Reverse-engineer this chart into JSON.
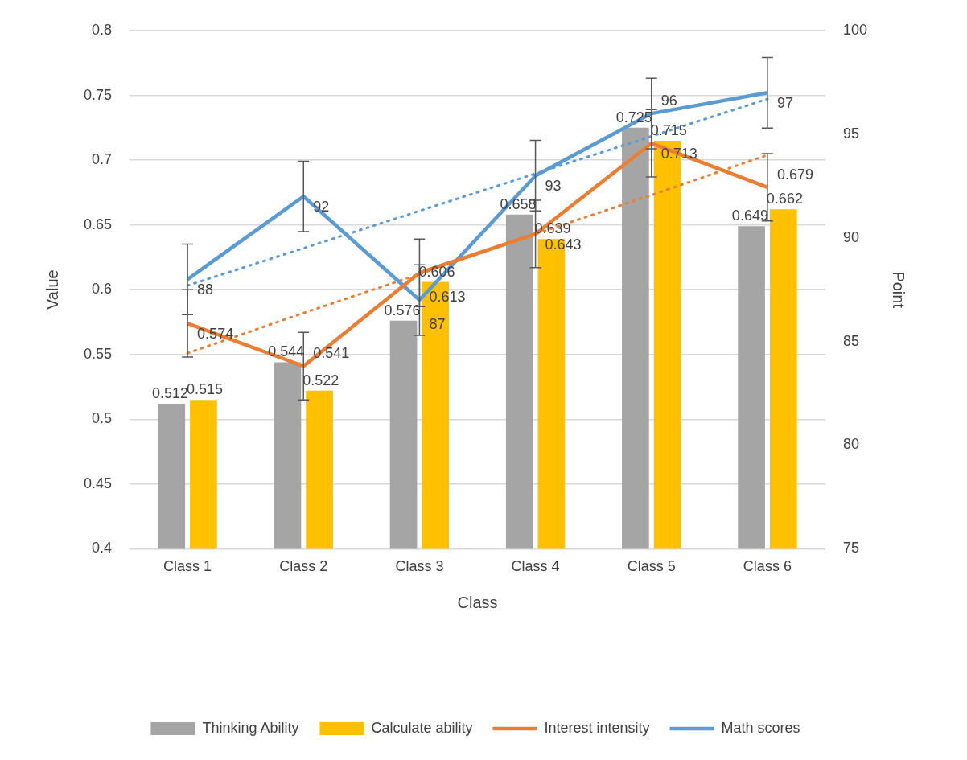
{
  "chart_data": {
    "type": "bar",
    "xlabel": "Class",
    "ylabel": "Value",
    "y2label": "Point",
    "categories": [
      "Class 1",
      "Class 2",
      "Class 3",
      "Class 4",
      "Class 5",
      "Class 6"
    ],
    "series": [
      {
        "name": "Thinking Ability",
        "color": "#a5a5a5",
        "values": [
          0.512,
          0.544,
          0.576,
          0.658,
          0.725,
          0.649
        ],
        "value_labels": [
          "0.512",
          "0.544",
          "0.576",
          "0.658",
          "0.725",
          "0.649"
        ]
      },
      {
        "name": "Calculate ability",
        "color": "#ffc000",
        "values": [
          0.515,
          0.522,
          0.606,
          0.639,
          0.715,
          0.662
        ],
        "value_labels": [
          "0.515",
          "0.522",
          "0.606",
          "0.639",
          "0.715",
          "0.662"
        ]
      },
      {
        "name": "Interest intensity",
        "type": "line",
        "color": "#ed7d31",
        "values": [
          0.574,
          0.541,
          0.613,
          0.643,
          0.713,
          0.679
        ],
        "errors": [
          0.026,
          0.026,
          0.026,
          0.026,
          0.026,
          0.026
        ],
        "value_labels": [
          "0.574",
          "0.541",
          "0.613",
          "0.643",
          "0.713",
          "0.679"
        ]
      },
      {
        "name": "Math scores",
        "type": "line",
        "axis": "y2",
        "color": "#5b9bd5",
        "values": [
          88,
          92,
          87,
          93,
          96,
          97
        ],
        "errors": [
          1.7,
          1.7,
          1.7,
          1.7,
          1.7,
          1.7
        ],
        "value_labels": [
          "88",
          "92",
          "87",
          "93",
          "96",
          "97"
        ]
      },
      {
        "type": "line",
        "color": "#ed7d31",
        "line_style": "dotted",
        "values": [
          0.551,
          0.582,
          0.612,
          0.643,
          0.673,
          0.704
        ]
      },
      {
        "type": "line",
        "axis": "y2",
        "color": "#5b9bd5",
        "line_style": "dotted",
        "values": [
          87.7,
          89.5,
          91.3,
          93.1,
          94.9,
          96.7
        ]
      }
    ],
    "ylim": [
      0.4,
      0.8
    ],
    "yticks": [
      0.4,
      0.45,
      0.5,
      0.55,
      0.6,
      0.65,
      0.7,
      0.75,
      0.8
    ],
    "y2lim": [
      75,
      100
    ],
    "y2ticks": [
      75,
      80,
      85,
      90,
      95,
      100
    ],
    "grid": "y",
    "legend": "bottom",
    "marker": "none"
  }
}
